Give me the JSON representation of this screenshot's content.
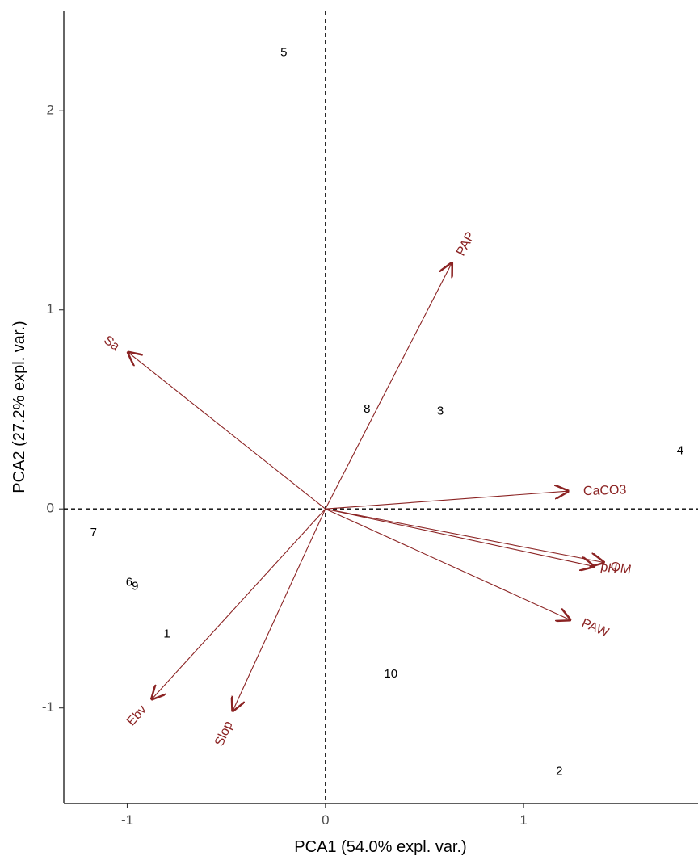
{
  "chart_data": {
    "type": "scatter",
    "title": "",
    "xlabel": "PCA1 (54.0% expl. var.)",
    "ylabel": "PCA2 (27.2% expl. var.)",
    "xlim": [
      -1.32,
      1.88
    ],
    "ylim": [
      -1.48,
      2.5
    ],
    "x_ticks": [
      -1,
      0,
      1
    ],
    "x_tick_labels": [
      "-1",
      "0",
      "1"
    ],
    "y_ticks": [
      -1,
      0,
      1,
      2
    ],
    "y_tick_labels": [
      "-1",
      "0",
      "1",
      "2"
    ],
    "grid": false,
    "reference_lines": {
      "x": 0,
      "y": 0,
      "style": "dashed"
    },
    "points": [
      {
        "label": "1",
        "x": -0.8,
        "y": -0.63
      },
      {
        "label": "2",
        "x": 1.18,
        "y": -1.32
      },
      {
        "label": "3",
        "x": 0.58,
        "y": 0.49
      },
      {
        "label": "4",
        "x": 1.79,
        "y": 0.29
      },
      {
        "label": "5",
        "x": -0.21,
        "y": 2.29
      },
      {
        "label": "6",
        "x": -0.99,
        "y": -0.37
      },
      {
        "label": "7",
        "x": -1.17,
        "y": -0.12
      },
      {
        "label": "8",
        "x": 0.21,
        "y": 0.5
      },
      {
        "label": "9",
        "x": -0.96,
        "y": -0.39
      },
      {
        "label": "10",
        "x": 0.33,
        "y": -0.83
      }
    ],
    "loadings": [
      {
        "name": "PAP",
        "x": 0.64,
        "y": 1.24,
        "label_x": 0.71,
        "label_y": 1.33,
        "label_rot": -62
      },
      {
        "name": "Sa",
        "x": -1.0,
        "y": 0.79,
        "label_x": -1.08,
        "label_y": 0.83,
        "label_rot": 37
      },
      {
        "name": "CaCO3",
        "x": 1.23,
        "y": 0.09,
        "label_x": 1.41,
        "label_y": 0.09,
        "label_rot": -2
      },
      {
        "name": "OM",
        "x": 1.41,
        "y": -0.27,
        "label_x": 1.49,
        "label_y": -0.3,
        "label_rot": 11
      },
      {
        "name": "pH",
        "x": 1.36,
        "y": -0.29,
        "label_x": 1.43,
        "label_y": -0.3,
        "label_rot": 11
      },
      {
        "name": "PAW",
        "x": 1.24,
        "y": -0.56,
        "label_x": 1.36,
        "label_y": -0.6,
        "label_rot": 23
      },
      {
        "name": "Ebv",
        "x": -0.88,
        "y": -0.96,
        "label_x": -0.95,
        "label_y": -1.04,
        "label_rot": -48
      },
      {
        "name": "Slop",
        "x": -0.47,
        "y": -1.02,
        "label_x": -0.51,
        "label_y": -1.13,
        "label_rot": -66
      }
    ],
    "colors": {
      "loadings": "#8b2323",
      "points": "#000000",
      "axes": "#000000"
    }
  }
}
